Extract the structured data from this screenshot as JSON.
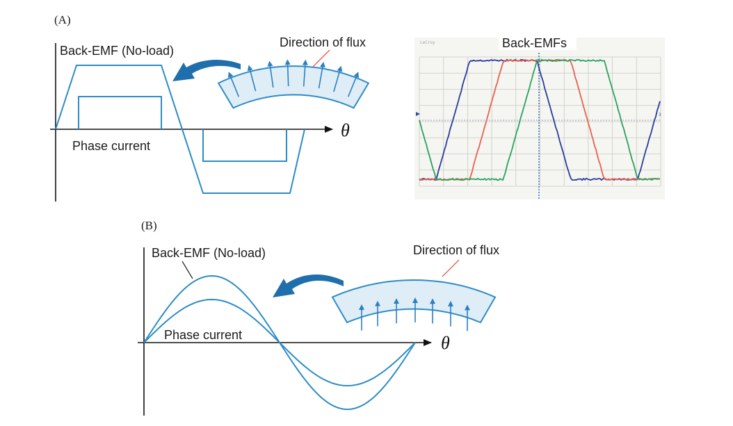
{
  "panel_a": {
    "label": "(A)",
    "back_emf_label": "Back-EMF (No-load)",
    "flux_label": "Direction of flux",
    "phase_current_label": "Phase current",
    "axis_symbol": "θ",
    "oscilloscope": {
      "title": "Back-EMFs",
      "brand": "LeCroy",
      "marker": "3"
    }
  },
  "panel_b": {
    "label": "(B)",
    "back_emf_label": "Back-EMF (No-load)",
    "flux_label": "Direction of flux",
    "phase_current_label": "Phase current",
    "axis_symbol": "θ"
  },
  "colors": {
    "waveform": "#2b8cc4",
    "magnet_fill": "#dfedf7",
    "curved_arrow": "#1f6fad",
    "leader_line": "#e8594a",
    "scope_phase_a": "#2a3a9c",
    "scope_phase_b": "#e8604c",
    "scope_phase_c": "#2aa060"
  }
}
